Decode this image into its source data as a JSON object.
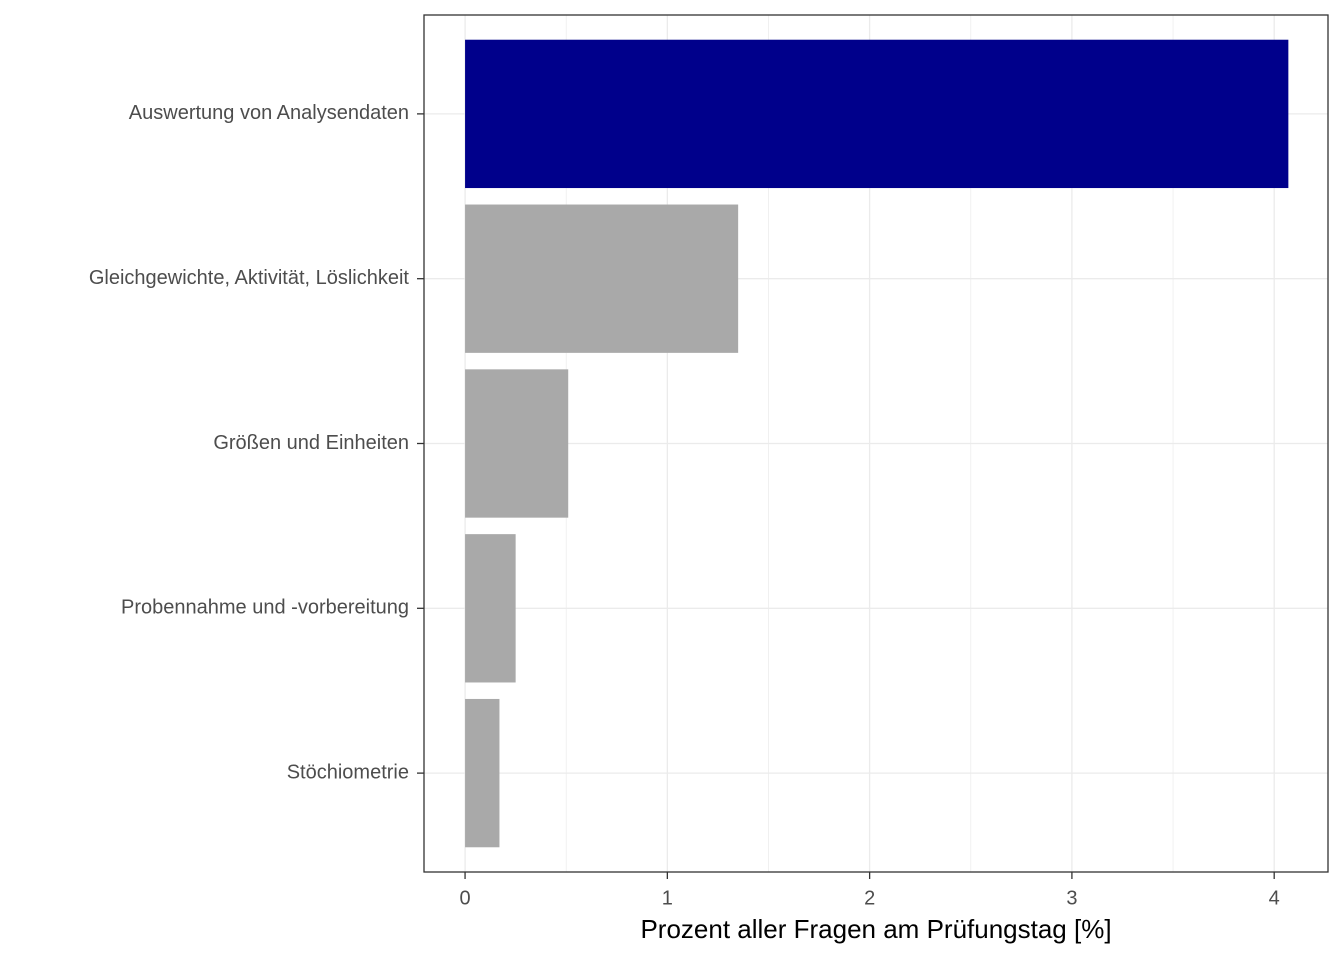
{
  "chart_data": {
    "type": "barh",
    "x_label": "Prozent aller Fragen am Prüfungstag [%]",
    "categories": [
      "Auswertung von Analysendaten",
      "Gleichgewichte, Aktivität, Löslichkeit",
      "Größen und Einheiten",
      "Probennahme und -vorbereitung",
      "Stöchiometrie"
    ],
    "values": [
      4.07,
      1.35,
      0.51,
      0.25,
      0.17
    ],
    "colors": [
      "#00008b",
      "#a9a9a9",
      "#a9a9a9",
      "#a9a9a9",
      "#a9a9a9"
    ],
    "xlim": [
      -0.203,
      4.266
    ],
    "xticks": [
      0,
      1,
      2,
      3,
      4
    ],
    "grid": true
  }
}
